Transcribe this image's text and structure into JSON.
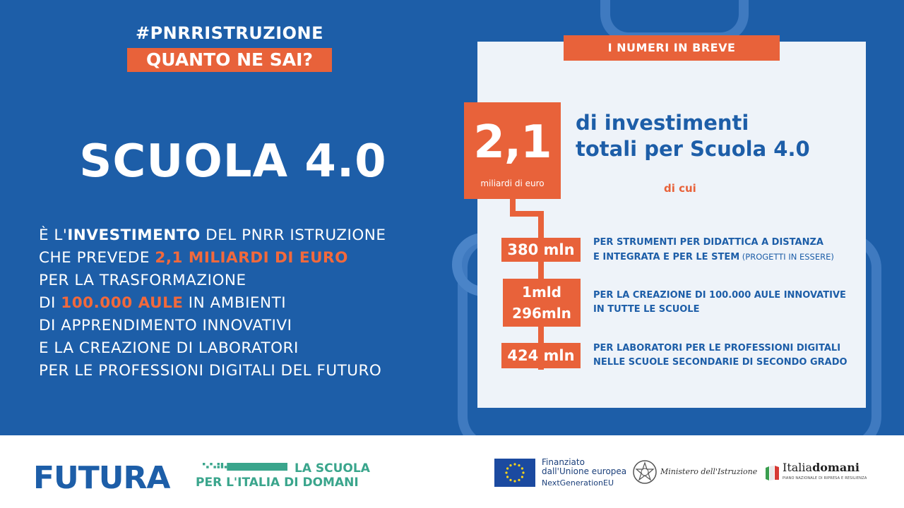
{
  "header": {
    "hashtag": "#PNRRISTRUZIONE",
    "question": "QUANTO NE SAI?"
  },
  "main": {
    "title": "SCUOLA 4.0",
    "desc": {
      "p1": "È L'",
      "p2": "INVESTIMENTO",
      "p3": " DEL PNRR ISTRUZIONE",
      "p4": "CHE PREVEDE ",
      "p5": "2,1 MILIARDI DI EURO",
      "p6": "PER LA TRASFORMAZIONE",
      "p7": "DI ",
      "p8": "100.000 AULE",
      "p9": " IN AMBIENTI",
      "p10": "DI APPRENDIMENTO INNOVATIVI",
      "p11": "E LA CREAZIONE DI LABORATORI",
      "p12": "PER LE PROFESSIONI DIGITALI DEL FUTURO"
    }
  },
  "card": {
    "header": "I NUMERI IN BREVE",
    "total_value": "2,1",
    "total_unit": "miliardi di euro",
    "total_line1": "di investimenti",
    "total_line2": "totali per Scuola 4.0",
    "dicui": "di cui",
    "items": [
      {
        "value": "380 mln",
        "line1": "PER STRUMENTI PER DIDATTICA A DISTANZA",
        "line2": "E INTEGRATA E PER LE STEM",
        "note": " (PROGETTI IN ESSERE)"
      },
      {
        "value_line1": "1mld",
        "value_line2": "296mln",
        "line1": "PER LA CREAZIONE DI 100.000 AULE INNOVATIVE",
        "line2": "IN TUTTE LE SCUOLE"
      },
      {
        "value": "424 mln",
        "line1": "PER LABORATORI PER LE PROFESSIONI DIGITALI",
        "line2": "NELLE SCUOLE SECONDARIE DI SECONDO GRADO"
      }
    ]
  },
  "footer": {
    "futura": "FUTURA",
    "scuola_line1": "LA SCUOLA",
    "scuola_line2": "PER L'ITALIA DI DOMANI",
    "eu_line1": "Finanziato",
    "eu_line2": "dall'Unione europea",
    "eu_line3": "NextGenerationEU",
    "ministero": "Ministero dell'Istruzione",
    "italia_a": "Italia",
    "italia_b": "domani",
    "italia_sub": "PIANO NAZIONALE DI RIPRESA E RESILIENZA"
  },
  "colors": {
    "blue": "#1d5ea8",
    "orange": "#e8623a",
    "card": "#eef3f9",
    "green": "#3aa58c"
  }
}
